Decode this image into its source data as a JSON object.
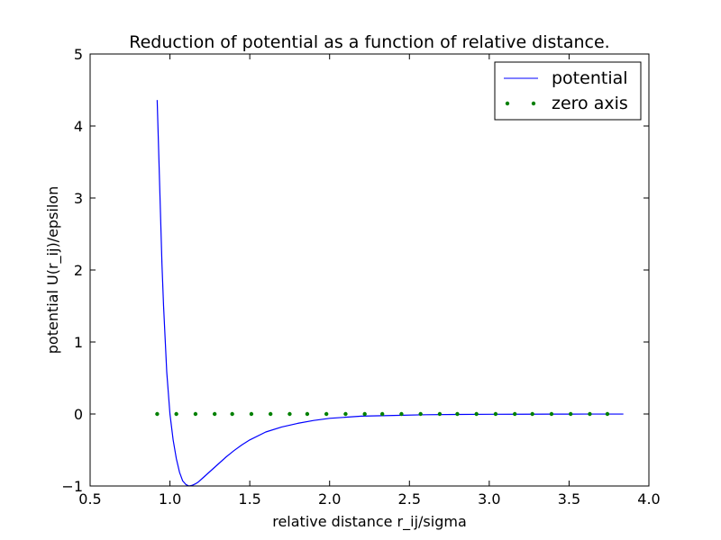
{
  "chart_data": {
    "type": "line",
    "title": "Reduction of potential as a function of relative distance.",
    "xlabel": "relative distance r_ij/sigma",
    "ylabel": "potential U(r_ij)/epsilon",
    "xlim": [
      0.5,
      4.0
    ],
    "ylim": [
      -1,
      5
    ],
    "xticks": [
      0.5,
      1.0,
      1.5,
      2.0,
      2.5,
      3.0,
      3.5,
      4.0
    ],
    "xtick_labels": [
      "0.5",
      "1.0",
      "1.5",
      "2.0",
      "2.5",
      "3.0",
      "3.5",
      "4.0"
    ],
    "yticks": [
      -1,
      0,
      1,
      2,
      3,
      4,
      5
    ],
    "ytick_labels": [
      "−1",
      "0",
      "1",
      "2",
      "3",
      "4",
      "5"
    ],
    "grid": false,
    "legend_position": "top-right",
    "series": [
      {
        "name": "potential",
        "style": "line",
        "color": "#0000ff",
        "x": [
          0.92,
          0.95,
          0.96,
          0.98,
          1.0,
          1.02,
          1.04,
          1.06,
          1.08,
          1.1,
          1.12,
          1.14,
          1.16,
          1.18,
          1.2,
          1.25,
          1.3,
          1.35,
          1.4,
          1.45,
          1.5,
          1.6,
          1.7,
          1.8,
          1.9,
          2.0,
          2.2,
          2.4,
          2.6,
          2.8,
          3.0,
          3.2,
          3.4,
          3.6,
          3.84
        ],
        "y": [
          4.36,
          2.08,
          1.5,
          0.58,
          0.0,
          -0.36,
          -0.62,
          -0.81,
          -0.93,
          -0.98,
          -1.0,
          -0.99,
          -0.97,
          -0.94,
          -0.9,
          -0.8,
          -0.7,
          -0.6,
          -0.51,
          -0.43,
          -0.36,
          -0.25,
          -0.18,
          -0.13,
          -0.09,
          -0.06,
          -0.03,
          -0.02,
          -0.01,
          -0.006,
          -0.004,
          -0.003,
          -0.002,
          -0.001,
          -0.001
        ]
      },
      {
        "name": "zero axis",
        "style": "dots",
        "color": "#008000",
        "x": [
          0.92,
          1.04,
          1.16,
          1.28,
          1.39,
          1.51,
          1.63,
          1.75,
          1.86,
          1.98,
          2.1,
          2.22,
          2.33,
          2.45,
          2.57,
          2.69,
          2.8,
          2.92,
          3.04,
          3.16,
          3.27,
          3.39,
          3.51,
          3.63,
          3.74
        ],
        "y": [
          0,
          0,
          0,
          0,
          0,
          0,
          0,
          0,
          0,
          0,
          0,
          0,
          0,
          0,
          0,
          0,
          0,
          0,
          0,
          0,
          0,
          0,
          0,
          0,
          0
        ]
      }
    ]
  }
}
